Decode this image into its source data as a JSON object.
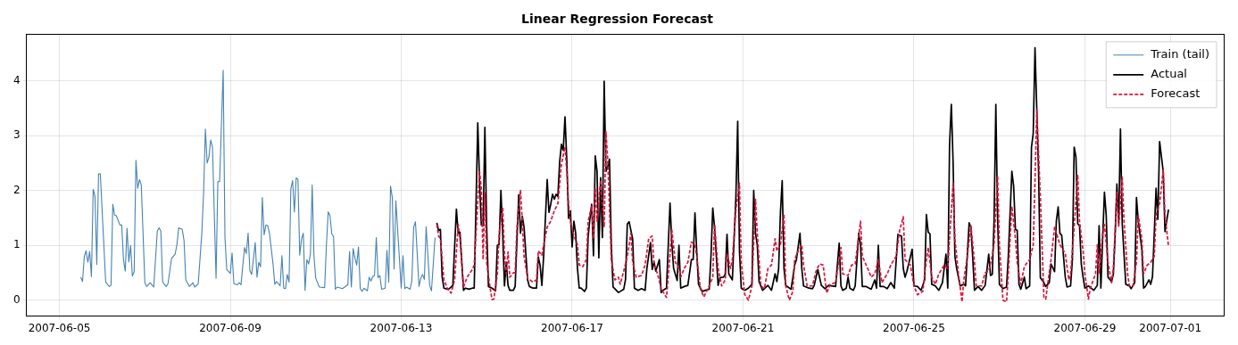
{
  "chart_data": {
    "type": "line",
    "title": "Linear Regression Forecast",
    "xlim": [
      "2007-06-04T05:30",
      "2007-07-02T06:00"
    ],
    "xticks": [
      "2007-06-05",
      "2007-06-09",
      "2007-06-13",
      "2007-06-17",
      "2007-06-21",
      "2007-06-25",
      "2007-06-29",
      "2007-07-01"
    ],
    "ylim": [
      -0.29,
      4.84
    ],
    "yticks": [
      0,
      1,
      2,
      3,
      4
    ],
    "grid": true,
    "legend": "top right",
    "marker": "none",
    "series": [
      {
        "name": "Train (tail)",
        "color": "#4682b4",
        "line_style": "solid",
        "x": [
          "2007-06-05T12:00",
          "2007-06-05T13:00",
          "2007-06-05T14:00",
          "2007-06-05T15:00",
          "2007-06-05T16:00",
          "2007-06-05T17:00",
          "2007-06-05T18:00",
          "2007-06-05T19:00",
          "2007-06-05T20:00",
          "2007-06-05T21:00",
          "2007-06-05T22:00",
          "2007-06-05T23:00",
          "2007-06-06T02:00",
          "2007-06-06T04:00",
          "2007-06-06T05:00",
          "2007-06-06T06:00",
          "2007-06-06T07:00",
          "2007-06-06T08:00",
          "2007-06-06T10:00",
          "2007-06-06T11:00",
          "2007-06-06T12:00",
          "2007-06-06T13:00",
          "2007-06-06T14:00",
          "2007-06-06T15:00",
          "2007-06-06T16:00",
          "2007-06-06T17:00",
          "2007-06-06T18:00",
          "2007-06-06T19:00",
          "2007-06-06T20:00",
          "2007-06-06T21:00",
          "2007-06-06T22:00",
          "2007-06-07T00:00",
          "2007-06-07T01:00",
          "2007-06-07T03:00",
          "2007-06-07T05:00",
          "2007-06-07T07:00",
          "2007-06-07T08:00",
          "2007-06-07T09:00",
          "2007-06-07T10:00",
          "2007-06-07T12:00",
          "2007-06-07T13:00",
          "2007-06-07T15:00",
          "2007-06-07T17:00",
          "2007-06-07T18:00",
          "2007-06-07T19:00",
          "2007-06-07T21:00",
          "2007-06-07T22:00",
          "2007-06-07T23:00",
          "2007-06-08T01:00",
          "2007-06-08T03:00",
          "2007-06-08T04:00",
          "2007-06-08T06:00",
          "2007-06-08T08:00",
          "2007-06-08T09:00",
          "2007-06-08T10:00",
          "2007-06-08T11:00",
          "2007-06-08T12:00",
          "2007-06-08T13:00",
          "2007-06-08T14:00",
          "2007-06-08T16:00",
          "2007-06-08T17:00",
          "2007-06-08T18:00",
          "2007-06-08T20:00",
          "2007-06-08T21:00",
          "2007-06-08T22:00",
          "2007-06-09T00:00",
          "2007-06-09T01:00",
          "2007-06-09T02:00",
          "2007-06-09T04:00",
          "2007-06-09T05:00",
          "2007-06-09T06:00",
          "2007-06-09T08:00",
          "2007-06-09T09:00",
          "2007-06-09T10:00",
          "2007-06-09T11:00",
          "2007-06-09T12:00",
          "2007-06-09T14:00",
          "2007-06-09T15:00",
          "2007-06-09T16:00",
          "2007-06-09T17:00",
          "2007-06-09T18:00",
          "2007-06-09T19:00",
          "2007-06-09T20:00",
          "2007-06-09T21:00",
          "2007-06-09T22:00",
          "2007-06-10T00:00",
          "2007-06-10T01:00",
          "2007-06-10T02:00",
          "2007-06-10T04:00",
          "2007-06-10T05:00",
          "2007-06-10T06:00",
          "2007-06-10T07:00",
          "2007-06-10T08:00",
          "2007-06-10T09:00",
          "2007-06-10T10:00",
          "2007-06-10T11:00",
          "2007-06-10T12:00",
          "2007-06-10T13:00",
          "2007-06-10T14:00",
          "2007-06-10T15:00",
          "2007-06-10T16:00",
          "2007-06-10T17:00",
          "2007-06-10T18:00",
          "2007-06-10T19:00",
          "2007-06-10T20:00",
          "2007-06-10T21:00",
          "2007-06-10T22:00",
          "2007-06-10T23:00",
          "2007-06-11T00:00",
          "2007-06-11T02:00",
          "2007-06-11T05:00",
          "2007-06-11T06:00",
          "2007-06-11T07:00",
          "2007-06-11T08:00",
          "2007-06-11T09:00",
          "2007-06-11T10:00",
          "2007-06-11T11:00",
          "2007-06-11T12:00",
          "2007-06-11T15:00",
          "2007-06-11T18:00",
          "2007-06-11T19:00",
          "2007-06-11T20:00",
          "2007-06-11T21:00",
          "2007-06-11T22:00",
          "2007-06-11T23:00",
          "2007-06-12T00:00",
          "2007-06-12T01:00",
          "2007-06-12T02:00",
          "2007-06-12T03:00",
          "2007-06-12T05:00",
          "2007-06-12T06:00",
          "2007-06-12T07:00",
          "2007-06-12T08:00",
          "2007-06-12T09:00",
          "2007-06-12T10:00",
          "2007-06-12T11:00",
          "2007-06-12T12:00",
          "2007-06-12T13:00",
          "2007-06-12T15:00",
          "2007-06-12T16:00",
          "2007-06-12T17:00",
          "2007-06-12T18:00",
          "2007-06-12T19:00",
          "2007-06-12T20:00",
          "2007-06-12T21:00",
          "2007-06-13T00:00",
          "2007-06-13T01:00",
          "2007-06-13T02:00",
          "2007-06-13T03:00",
          "2007-06-13T05:00",
          "2007-06-13T06:00",
          "2007-06-13T07:00",
          "2007-06-13T08:00",
          "2007-06-13T10:00",
          "2007-06-13T11:00",
          "2007-06-13T12:00",
          "2007-06-13T13:00",
          "2007-06-13T14:00",
          "2007-06-13T16:00",
          "2007-06-13T17:00",
          "2007-06-13T19:00"
        ],
        "values": [
          0.42,
          0.34,
          0.8,
          0.9,
          0.69,
          0.89,
          0.43,
          2.02,
          1.89,
          0.65,
          2.3,
          2.3,
          0.33,
          0.25,
          0.27,
          1.75,
          1.55,
          1.54,
          1.37,
          1.37,
          0.74,
          0.53,
          1.31,
          0.7,
          1.0,
          0.44,
          0.52,
          2.55,
          2.04,
          2.2,
          2.1,
          0.32,
          0.25,
          0.32,
          0.24,
          1.26,
          1.32,
          1.26,
          0.33,
          0.25,
          0.3,
          0.76,
          0.84,
          1.01,
          1.32,
          1.29,
          1.09,
          0.37,
          0.25,
          0.32,
          0.24,
          0.3,
          1.22,
          1.95,
          3.12,
          2.5,
          2.61,
          2.92,
          2.78,
          0.4,
          2.16,
          2.16,
          4.19,
          1.14,
          0.56,
          0.49,
          0.86,
          0.3,
          0.28,
          0.32,
          0.28,
          0.96,
          0.85,
          1.22,
          0.54,
          0.47,
          1.05,
          0.42,
          0.69,
          0.61,
          1.87,
          1.19,
          1.37,
          1.36,
          1.22,
          0.66,
          0.29,
          0.34,
          0.26,
          0.81,
          0.22,
          0.21,
          0.47,
          0.33,
          2.03,
          2.18,
          1.61,
          2.23,
          2.2,
          0.82,
          1.11,
          1.22,
          0.18,
          0.74,
          0.66,
          0.84,
          2.1,
          0.8,
          0.4,
          0.24,
          0.23,
          1.01,
          1.61,
          1.54,
          1.21,
          1.16,
          0.2,
          0.24,
          0.21,
          0.28,
          0.89,
          0.24,
          0.94,
          0.77,
          0.64,
          0.97,
          0.21,
          0.16,
          0.22,
          0.17,
          0.42,
          0.35,
          0.43,
          0.45,
          1.14,
          0.41,
          0.45,
          0.2,
          0.22,
          0.91,
          0.33,
          2.08,
          1.87,
          0.57,
          1.81,
          0.22,
          0.81,
          0.21,
          0.24,
          0.2,
          0.36,
          1.33,
          1.43,
          0.25,
          0.4,
          0.47,
          0.38,
          1.34,
          0.27,
          0.17,
          1.14
        ]
      },
      {
        "name": "Actual",
        "color": "#000000",
        "line_style": "solid",
        "x": [
          "2007-06-13T20:00",
          "2007-06-13T21:00",
          "2007-06-13T22:00",
          "2007-06-13T23:00",
          "2007-06-14T00:00",
          "2007-06-14T02:00",
          "2007-06-14T03:00",
          "2007-06-14T05:00",
          "2007-06-14T07:00",
          "2007-06-14T08:00",
          "2007-06-14T09:00",
          "2007-06-14T11:00",
          "2007-06-14T12:00",
          "2007-06-14T14:00",
          "2007-06-14T16:00",
          "2007-06-14T17:00",
          "2007-06-14T19:00",
          "2007-06-14T20:00",
          "2007-06-14T21:00",
          "2007-06-14T22:00",
          "2007-06-14T23:00",
          "2007-06-15T00:00",
          "2007-06-15T01:00",
          "2007-06-15T03:00",
          "2007-06-15T05:00",
          "2007-06-15T06:00",
          "2007-06-15T07:00",
          "2007-06-15T08:00",
          "2007-06-15T09:00",
          "2007-06-15T10:00",
          "2007-06-15T11:00",
          "2007-06-15T12:00",
          "2007-06-15T13:00",
          "2007-06-15T15:00",
          "2007-06-15T16:00",
          "2007-06-15T18:00",
          "2007-06-15T19:00",
          "2007-06-15T20:00",
          "2007-06-15T21:00",
          "2007-06-15T23:00",
          "2007-06-16T00:00",
          "2007-06-16T02:00",
          "2007-06-16T04:00",
          "2007-06-16T05:00",
          "2007-06-16T06:00",
          "2007-06-16T07:00",
          "2007-06-16T08:00",
          "2007-06-16T10:00",
          "2007-06-16T11:00",
          "2007-06-16T12:00",
          "2007-06-16T13:00",
          "2007-06-16T14:00",
          "2007-06-16T15:00",
          "2007-06-16T16:00",
          "2007-06-16T17:00",
          "2007-06-16T18:00",
          "2007-06-16T19:00",
          "2007-06-16T20:00",
          "2007-06-16T21:00",
          "2007-06-16T22:00",
          "2007-06-16T23:00",
          "2007-06-17T00:00",
          "2007-06-17T01:00",
          "2007-06-17T02:00",
          "2007-06-17T03:00",
          "2007-06-17T04:00",
          "2007-06-17T05:00",
          "2007-06-17T07:00",
          "2007-06-17T08:00",
          "2007-06-17T09:00",
          "2007-06-17T10:00",
          "2007-06-17T11:00",
          "2007-06-17T12:00",
          "2007-06-17T13:00",
          "2007-06-17T14:00",
          "2007-06-17T15:00",
          "2007-06-17T16:00",
          "2007-06-17T17:00",
          "2007-06-17T18:00",
          "2007-06-17T19:00",
          "2007-06-17T20:00",
          "2007-06-17T21:00",
          "2007-06-17T22:00",
          "2007-06-17T23:00",
          "2007-06-18T00:00",
          "2007-06-18T02:00",
          "2007-06-18T05:00",
          "2007-06-18T06:00",
          "2007-06-18T07:00",
          "2007-06-18T08:00",
          "2007-06-18T10:00",
          "2007-06-18T11:00",
          "2007-06-18T13:00",
          "2007-06-18T15:00",
          "2007-06-18T17:00",
          "2007-06-18T18:00",
          "2007-06-18T20:00",
          "2007-06-18T21:00",
          "2007-06-18T22:00",
          "2007-06-18T23:00",
          "2007-06-19T01:00",
          "2007-06-19T02:00",
          "2007-06-19T03:00",
          "2007-06-19T05:00",
          "2007-06-19T07:00",
          "2007-06-19T08:00",
          "2007-06-19T09:00",
          "2007-06-19T11:00",
          "2007-06-19T12:00",
          "2007-06-19T13:00",
          "2007-06-19T15:00",
          "2007-06-19T17:00",
          "2007-06-19T19:00",
          "2007-06-19T20:00",
          "2007-06-19T21:00",
          "2007-06-19T22:00",
          "2007-06-19T23:00",
          "2007-06-20T01:00",
          "2007-06-20T03:00",
          "2007-06-20T05:00",
          "2007-06-20T06:00",
          "2007-06-20T07:00",
          "2007-06-20T08:00",
          "2007-06-20T10:00",
          "2007-06-20T11:00",
          "2007-06-20T13:00",
          "2007-06-20T14:00",
          "2007-06-20T15:00",
          "2007-06-20T16:00",
          "2007-06-20T18:00",
          "2007-06-20T19:00",
          "2007-06-20T20:00",
          "2007-06-20T21:00",
          "2007-06-20T22:00",
          "2007-06-20T23:00",
          "2007-06-21T01:00",
          "2007-06-21T03:00",
          "2007-06-21T05:00",
          "2007-06-21T06:00",
          "2007-06-21T07:00",
          "2007-06-21T08:00",
          "2007-06-21T09:00",
          "2007-06-21T11:00",
          "2007-06-21T14:00",
          "2007-06-21T16:00",
          "2007-06-21T18:00",
          "2007-06-21T19:00",
          "2007-06-21T20:00",
          "2007-06-21T21:00",
          "2007-06-21T22:00",
          "2007-06-21T23:00",
          "2007-06-22T00:00",
          "2007-06-22T03:00",
          "2007-06-22T05:00",
          "2007-06-22T06:00",
          "2007-06-22T08:00",
          "2007-06-22T09:00",
          "2007-06-22T10:00",
          "2007-06-22T13:00",
          "2007-06-22T15:00",
          "2007-06-22T16:00",
          "2007-06-22T18:00",
          "2007-06-22T20:00",
          "2007-06-22T22:00",
          "2007-06-23T00:00",
          "2007-06-23T04:00",
          "2007-06-23T06:00",
          "2007-06-23T07:00",
          "2007-06-23T08:00",
          "2007-06-23T10:00",
          "2007-06-23T11:00",
          "2007-06-23T12:00",
          "2007-06-23T14:00",
          "2007-06-23T15:00",
          "2007-06-23T17:00",
          "2007-06-23T18:00",
          "2007-06-23T19:00",
          "2007-06-23T21:00",
          "2007-06-24T00:00",
          "2007-06-24T02:00",
          "2007-06-24T03:00",
          "2007-06-24T04:00",
          "2007-06-24T05:00",
          "2007-06-24T07:00",
          "2007-06-24T09:00",
          "2007-06-24T11:00",
          "2007-06-24T13:00",
          "2007-06-24T15:00",
          "2007-06-24T16:00",
          "2007-06-24T17:00",
          "2007-06-24T18:00",
          "2007-06-24T19:00",
          "2007-06-24T20:00",
          "2007-06-24T23:00",
          "2007-06-25T00:00",
          "2007-06-25T02:00",
          "2007-06-25T04:00",
          "2007-06-25T06:00",
          "2007-06-25T07:00",
          "2007-06-25T08:00",
          "2007-06-25T09:00",
          "2007-06-25T10:00",
          "2007-06-25T12:00",
          "2007-06-25T14:00",
          "2007-06-25T16:00",
          "2007-06-25T18:00",
          "2007-06-25T19:00",
          "2007-06-25T20:00",
          "2007-06-25T21:00",
          "2007-06-25T22:00",
          "2007-06-25T23:00",
          "2007-06-26T00:00",
          "2007-06-26T02:00",
          "2007-06-26T04:00",
          "2007-06-26T05:00",
          "2007-06-26T07:00",
          "2007-06-26T08:00",
          "2007-06-26T09:00",
          "2007-06-26T10:00",
          "2007-06-26T12:00",
          "2007-06-26T14:00",
          "2007-06-26T16:00",
          "2007-06-26T18:00",
          "2007-06-26T19:00",
          "2007-06-26T20:00",
          "2007-06-26T21:00",
          "2007-06-26T22:00",
          "2007-06-26T23:00",
          "2007-06-27T00:00",
          "2007-06-27T02:00",
          "2007-06-27T04:00",
          "2007-06-27T05:00",
          "2007-06-27T07:00",
          "2007-06-27T08:00",
          "2007-06-27T09:00",
          "2007-06-27T10:00",
          "2007-06-27T11:00",
          "2007-06-27T12:00",
          "2007-06-27T14:00",
          "2007-06-27T15:00",
          "2007-06-27T17:00",
          "2007-06-27T18:00",
          "2007-06-27T19:00",
          "2007-06-27T20:00",
          "2007-06-27T22:00",
          "2007-06-27T23:00",
          "2007-06-28T01:00",
          "2007-06-28T02:00",
          "2007-06-28T04:00",
          "2007-06-28T05:00",
          "2007-06-28T07:00",
          "2007-06-28T08:00",
          "2007-06-28T09:00",
          "2007-06-28T10:00",
          "2007-06-28T11:00",
          "2007-06-28T13:00",
          "2007-06-28T14:00",
          "2007-06-28T16:00",
          "2007-06-28T17:00",
          "2007-06-28T18:00",
          "2007-06-28T19:00",
          "2007-06-28T20:00",
          "2007-06-28T21:00",
          "2007-06-28T22:00",
          "2007-06-28T23:00",
          "2007-06-29T00:00",
          "2007-06-29T02:00",
          "2007-06-29T04:00",
          "2007-06-29T05:00",
          "2007-06-29T07:00",
          "2007-06-29T08:00",
          "2007-06-29T09:00",
          "2007-06-29T10:00",
          "2007-06-29T11:00",
          "2007-06-29T12:00",
          "2007-06-29T13:00",
          "2007-06-29T15:00",
          "2007-06-29T16:00",
          "2007-06-29T17:00",
          "2007-06-29T18:00",
          "2007-06-29T19:00",
          "2007-06-29T20:00",
          "2007-06-29T21:00",
          "2007-06-29T23:00",
          "2007-06-30T01:00",
          "2007-06-30T02:00",
          "2007-06-30T04:00",
          "2007-06-30T05:00",
          "2007-06-30T06:00",
          "2007-06-30T08:00",
          "2007-06-30T09:00",
          "2007-06-30T10:00",
          "2007-06-30T12:00",
          "2007-06-30T13:00",
          "2007-06-30T14:00",
          "2007-06-30T16:00",
          "2007-06-30T17:00",
          "2007-06-30T18:00",
          "2007-06-30T20:00",
          "2007-06-30T21:00",
          "2007-06-30T23:00"
        ],
        "values": [
          1.41,
          1.27,
          1.29,
          0.42,
          0.22,
          0.2,
          0.21,
          0.27,
          1.66,
          1.22,
          1.24,
          0.18,
          0.22,
          0.2,
          0.22,
          0.22,
          3.23,
          2.16,
          1.37,
          1.36,
          3.15,
          1.33,
          0.25,
          0.22,
          0.17,
          1.0,
          1.02,
          2.0,
          1.22,
          0.26,
          0.69,
          0.27,
          0.18,
          0.18,
          0.25,
          1.92,
          1.22,
          1.53,
          1.33,
          0.37,
          0.25,
          0.22,
          0.22,
          0.79,
          0.64,
          0.27,
          0.8,
          2.2,
          1.6,
          1.75,
          1.93,
          1.84,
          1.93,
          1.89,
          2.52,
          2.84,
          2.73,
          3.34,
          2.56,
          1.49,
          1.63,
          0.97,
          1.44,
          1.22,
          0.58,
          0.22,
          0.22,
          0.16,
          0.22,
          1.16,
          1.49,
          1.75,
          0.81,
          2.63,
          2.35,
          0.77,
          2.23,
          1.14,
          3.99,
          2.35,
          2.43,
          2.57,
          1.01,
          0.24,
          0.21,
          0.14,
          0.2,
          0.38,
          1.39,
          1.43,
          1.12,
          0.22,
          0.18,
          0.21,
          0.18,
          0.58,
          1.05,
          0.56,
          0.7,
          0.53,
          0.74,
          0.14,
          0.18,
          0.22,
          1.77,
          1.04,
          0.58,
          0.36,
          1.0,
          0.22,
          0.25,
          0.27,
          0.74,
          0.74,
          1.59,
          0.88,
          0.29,
          0.16,
          0.18,
          0.2,
          0.8,
          1.68,
          1.33,
          0.27,
          0.41,
          0.42,
          0.47,
          1.2,
          0.48,
          0.37,
          1.12,
          1.89,
          3.26,
          0.9,
          0.22,
          0.18,
          0.22,
          0.29,
          2.0,
          1.22,
          1.01,
          0.34,
          0.18,
          0.27,
          0.18,
          0.48,
          0.34,
          0.58,
          1.59,
          2.18,
          0.58,
          0.27,
          0.2,
          0.64,
          0.74,
          1.22,
          0.58,
          0.26,
          0.22,
          0.21,
          0.27,
          0.56,
          0.27,
          0.21,
          0.27,
          0.25,
          1.04,
          0.26,
          0.18,
          0.22,
          0.42,
          0.22,
          0.18,
          0.26,
          1.22,
          1.01,
          0.25,
          0.25,
          0.2,
          0.37,
          0.22,
          1.0,
          0.25,
          0.25,
          0.21,
          0.32,
          0.22,
          1.2,
          1.18,
          1.17,
          0.58,
          0.42,
          0.52,
          0.93,
          0.26,
          0.25,
          0.18,
          0.37,
          1.56,
          1.24,
          1.21,
          0.29,
          0.26,
          0.18,
          0.32,
          0.84,
          0.22,
          2.83,
          3.57,
          2.51,
          0.8,
          0.58,
          0.26,
          0.29,
          0.26,
          1.41,
          1.33,
          0.79,
          0.18,
          0.25,
          0.18,
          0.27,
          0.84,
          0.45,
          0.47,
          1.44,
          3.57,
          1.49,
          0.29,
          0.21,
          0.24,
          0.8,
          2.35,
          2.08,
          1.29,
          1.27,
          0.29,
          0.2,
          0.42,
          0.21,
          0.26,
          2.78,
          3.04,
          4.6,
          2.35,
          0.41,
          0.32,
          0.25,
          0.32,
          0.66,
          0.52,
          1.45,
          1.7,
          1.22,
          1.18,
          0.42,
          0.24,
          0.26,
          0.74,
          2.79,
          2.61,
          1.39,
          1.36,
          0.66,
          0.42,
          0.22,
          0.26,
          0.21,
          0.18,
          0.27,
          1.36,
          0.22,
          1.12,
          1.97,
          1.55,
          0.42,
          0.34,
          0.47,
          1.17,
          2.12,
          1.4,
          3.12,
          1.39,
          0.29,
          0.26,
          0.21,
          0.32,
          1.87,
          1.44,
          0.93,
          0.22,
          0.25,
          0.37,
          0.29,
          0.43,
          2.04,
          1.47,
          2.89,
          2.35,
          1.25,
          1.65
        ]
      },
      {
        "name": "Forecast",
        "color": "#dc143c",
        "line_style": "dashed",
        "x": [
          "2007-06-13T20:00",
          "2007-06-13T21:00",
          "2007-06-13T22:00",
          "2007-06-14T00:00",
          "2007-06-14T02:00",
          "2007-06-14T04:00",
          "2007-06-14T06:00",
          "2007-06-14T08:00",
          "2007-06-14T09:00",
          "2007-06-14T11:00",
          "2007-06-14T13:00",
          "2007-06-14T16:00",
          "2007-06-14T17:00",
          "2007-06-14T20:00",
          "2007-06-14T21:00",
          "2007-06-14T22:00",
          "2007-06-14T23:00",
          "2007-06-15T00:00",
          "2007-06-15T02:00",
          "2007-06-15T03:00",
          "2007-06-15T04:00",
          "2007-06-15T06:00",
          "2007-06-15T07:00",
          "2007-06-15T09:00",
          "2007-06-15T10:00",
          "2007-06-15T11:00",
          "2007-06-15T12:00",
          "2007-06-15T13:00",
          "2007-06-15T15:00",
          "2007-06-15T16:00",
          "2007-06-15T17:00",
          "2007-06-15T19:00",
          "2007-06-15T20:00",
          "2007-06-15T21:00",
          "2007-06-15T23:00",
          "2007-06-16T02:00",
          "2007-06-16T04:00",
          "2007-06-16T05:00",
          "2007-06-16T07:00",
          "2007-06-16T08:00",
          "2007-06-16T10:00",
          "2007-06-16T12:00",
          "2007-06-16T14:00",
          "2007-06-16T16:00",
          "2007-06-16T18:00",
          "2007-06-16T20:00",
          "2007-06-16T21:00",
          "2007-06-16T22:00",
          "2007-06-16T23:00",
          "2007-06-17T01:00",
          "2007-06-17T03:00",
          "2007-06-17T04:00",
          "2007-06-17T06:00",
          "2007-06-17T08:00",
          "2007-06-17T09:00",
          "2007-06-17T11:00",
          "2007-06-17T12:00",
          "2007-06-17T13:00",
          "2007-06-17T14:00",
          "2007-06-17T16:00",
          "2007-06-17T18:00",
          "2007-06-17T19:00",
          "2007-06-17T20:00",
          "2007-06-17T21:00",
          "2007-06-17T22:00",
          "2007-06-18T00:00",
          "2007-06-18T02:00",
          "2007-06-18T03:00",
          "2007-06-18T05:00",
          "2007-06-18T07:00",
          "2007-06-18T09:00",
          "2007-06-18T10:00",
          "2007-06-18T12:00",
          "2007-06-18T15:00",
          "2007-06-18T17:00",
          "2007-06-18T19:00",
          "2007-06-18T21:00",
          "2007-06-18T22:00",
          "2007-06-19T00:00",
          "2007-06-19T02:00",
          "2007-06-19T05:00",
          "2007-06-19T06:00",
          "2007-06-19T08:00",
          "2007-06-19T10:00",
          "2007-06-19T12:00",
          "2007-06-19T13:00",
          "2007-06-19T15:00",
          "2007-06-19T17:00",
          "2007-06-19T19:00",
          "2007-06-19T21:00",
          "2007-06-19T22:00",
          "2007-06-20T00:00",
          "2007-06-20T02:00",
          "2007-06-20T05:00",
          "2007-06-20T07:00",
          "2007-06-20T08:00",
          "2007-06-20T10:00",
          "2007-06-20T12:00",
          "2007-06-20T14:00",
          "2007-06-20T15:00",
          "2007-06-20T17:00",
          "2007-06-20T18:00",
          "2007-06-20T20:00",
          "2007-06-20T22:00",
          "2007-06-20T23:00",
          "2007-06-21T01:00",
          "2007-06-21T03:00",
          "2007-06-21T05:00",
          "2007-06-21T07:00",
          "2007-06-21T08:00",
          "2007-06-21T10:00",
          "2007-06-21T12:00",
          "2007-06-21T14:00",
          "2007-06-21T16:00",
          "2007-06-21T18:00",
          "2007-06-21T19:00",
          "2007-06-21T21:00",
          "2007-06-21T23:00",
          "2007-06-22T00:00",
          "2007-06-22T02:00",
          "2007-06-22T04:00",
          "2007-06-22T05:00",
          "2007-06-22T07:00",
          "2007-06-22T09:00",
          "2007-06-22T10:00",
          "2007-06-22T12:00",
          "2007-06-22T15:00",
          "2007-06-22T17:00",
          "2007-06-22T19:00",
          "2007-06-22T21:00",
          "2007-06-22T23:00",
          "2007-06-23T01:00",
          "2007-06-23T04:00",
          "2007-06-23T07:00",
          "2007-06-23T08:00",
          "2007-06-23T11:00",
          "2007-06-23T13:00",
          "2007-06-23T15:00",
          "2007-06-23T18:00",
          "2007-06-23T19:00",
          "2007-06-23T22:00",
          "2007-06-24T00:00",
          "2007-06-24T02:00",
          "2007-06-24T04:00",
          "2007-06-24T06:00",
          "2007-06-24T09:00",
          "2007-06-24T11:00",
          "2007-06-24T14:00",
          "2007-06-24T16:00",
          "2007-06-24T18:00",
          "2007-06-24T19:00",
          "2007-06-24T22:00",
          "2007-06-25T00:00",
          "2007-06-25T02:00",
          "2007-06-25T05:00",
          "2007-06-25T06:00",
          "2007-06-25T08:00",
          "2007-06-25T10:00",
          "2007-06-25T12:00",
          "2007-06-25T14:00",
          "2007-06-25T17:00",
          "2007-06-25T19:00",
          "2007-06-25T20:00",
          "2007-06-25T22:00",
          "2007-06-25T23:00",
          "2007-06-26T01:00",
          "2007-06-26T03:00",
          "2007-06-26T04:00",
          "2007-06-26T06:00",
          "2007-06-26T08:00",
          "2007-06-26T10:00",
          "2007-06-26T11:00",
          "2007-06-26T14:00",
          "2007-06-26T16:00",
          "2007-06-26T18:00",
          "2007-06-26T20:00",
          "2007-06-26T21:00",
          "2007-06-26T23:00",
          "2007-06-27T00:00",
          "2007-06-27T02:00",
          "2007-06-27T04:00",
          "2007-06-27T05:00",
          "2007-06-27T07:00",
          "2007-06-27T09:00",
          "2007-06-27T10:00",
          "2007-06-27T12:00",
          "2007-06-27T14:00",
          "2007-06-27T15:00",
          "2007-06-27T17:00",
          "2007-06-27T19:00",
          "2007-06-27T20:00",
          "2007-06-27T21:00",
          "2007-06-27T23:00",
          "2007-06-28T01:00",
          "2007-06-28T02:00",
          "2007-06-28T04:00",
          "2007-06-28T05:00",
          "2007-06-28T07:00",
          "2007-06-28T09:00",
          "2007-06-28T10:00",
          "2007-06-28T13:00",
          "2007-06-28T15:00",
          "2007-06-28T16:00",
          "2007-06-28T18:00",
          "2007-06-28T20:00",
          "2007-06-28T21:00",
          "2007-06-28T23:00",
          "2007-06-29T00:00",
          "2007-06-29T02:00",
          "2007-06-29T03:00",
          "2007-06-29T06:00",
          "2007-06-29T07:00",
          "2007-06-29T08:00",
          "2007-06-29T10:00",
          "2007-06-29T11:00",
          "2007-06-29T13:00",
          "2007-06-29T15:00",
          "2007-06-29T16:00",
          "2007-06-29T18:00",
          "2007-06-29T19:00",
          "2007-06-29T21:00",
          "2007-06-29T22:00",
          "2007-06-30T00:00",
          "2007-06-30T01:00",
          "2007-06-30T03:00",
          "2007-06-30T05:00",
          "2007-06-30T06:00",
          "2007-06-30T08:00",
          "2007-06-30T09:00",
          "2007-06-30T11:00",
          "2007-06-30T13:00",
          "2007-06-30T15:00",
          "2007-06-30T16:00",
          "2007-06-30T18:00",
          "2007-06-30T20:00",
          "2007-06-30T21:00",
          "2007-06-30T23:00"
        ],
        "values": [
          1.38,
          1.17,
          1.12,
          0.37,
          0.21,
          0.13,
          0.37,
          1.38,
          1.12,
          0.24,
          0.42,
          0.56,
          0.64,
          2.35,
          2.03,
          0.74,
          1.95,
          0.69,
          0.21,
          0.01,
          0.02,
          0.48,
          1.22,
          1.7,
          0.85,
          0.48,
          0.88,
          0.42,
          0.5,
          0.5,
          1.33,
          2.0,
          1.44,
          0.8,
          0.4,
          0.33,
          0.37,
          0.9,
          0.82,
          1.01,
          1.33,
          1.44,
          1.63,
          1.76,
          2.48,
          2.8,
          2.35,
          1.76,
          1.44,
          1.17,
          1.01,
          0.64,
          0.61,
          0.74,
          1.44,
          1.71,
          1.12,
          2.03,
          1.44,
          2.19,
          1.33,
          3.07,
          2.56,
          1.65,
          0.74,
          0.37,
          0.42,
          0.29,
          0.53,
          0.8,
          1.22,
          0.69,
          0.42,
          0.45,
          0.64,
          1.12,
          1.17,
          0.64,
          0.48,
          0.21,
          0.05,
          0.42,
          1.28,
          0.69,
          0.58,
          0.42,
          0.58,
          0.69,
          1.06,
          1.01,
          0.8,
          0.21,
          0.06,
          0.26,
          0.42,
          1.38,
          0.58,
          0.26,
          0.37,
          0.85,
          0.58,
          0.74,
          1.65,
          2.13,
          0.69,
          0.1,
          0.0,
          0.26,
          1.84,
          1.22,
          0.26,
          0.21,
          0.58,
          0.64,
          1.12,
          0.9,
          1.01,
          1.57,
          0.26,
          0.0,
          0.16,
          0.74,
          0.9,
          1.01,
          0.64,
          0.26,
          0.26,
          0.53,
          0.66,
          0.64,
          0.13,
          0.29,
          0.32,
          0.96,
          0.48,
          0.45,
          0.64,
          0.66,
          1.44,
          0.8,
          0.58,
          0.42,
          0.48,
          0.74,
          0.32,
          0.48,
          0.64,
          0.8,
          1.28,
          1.52,
          0.74,
          0.64,
          0.26,
          0.1,
          0.16,
          0.48,
          0.96,
          0.42,
          0.29,
          0.48,
          0.64,
          0.58,
          1.12,
          2.13,
          1.12,
          0.48,
          -0.03,
          0.37,
          0.8,
          1.36,
          0.69,
          0.26,
          0.26,
          0.5,
          0.53,
          0.82,
          1.01,
          2.27,
          1.01,
          0.0,
          -0.03,
          0.48,
          1.71,
          1.12,
          0.69,
          0.29,
          0.61,
          0.66,
          0.74,
          1.01,
          2.19,
          3.47,
          1.87,
          0.05,
          0.02,
          0.5,
          0.74,
          1.33,
          1.12,
          1.01,
          0.85,
          0.37,
          0.48,
          1.33,
          2.29,
          1.44,
          0.9,
          0.48,
          0.02,
          0.21,
          0.48,
          1.01,
          0.48,
          1.22,
          1.38,
          0.69,
          0.32,
          0.58,
          1.97,
          1.33,
          2.24,
          1.44,
          0.48,
          0.26,
          0.26,
          0.69,
          1.55,
          1.12,
          0.48,
          0.64,
          0.69,
          0.8,
          1.55,
          1.76,
          2.37,
          1.55,
          0.98
        ]
      }
    ]
  }
}
